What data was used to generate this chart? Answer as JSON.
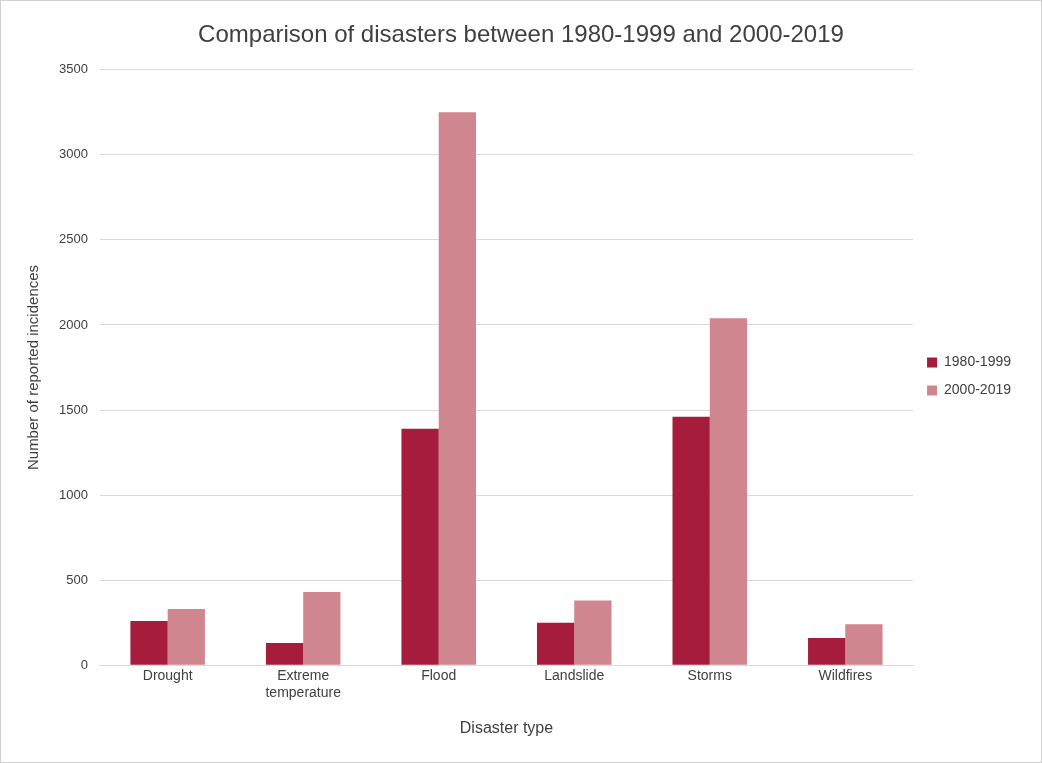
{
  "chart_data": {
    "type": "bar",
    "title": "Comparison of disasters between 1980-1999 and 2000-2019",
    "xlabel": "Disaster type",
    "ylabel": "Number of reported incidences",
    "categories": [
      "Drought",
      "Extreme temperature",
      "Flood",
      "Landslide",
      "Storms",
      "Wildfires"
    ],
    "series": [
      {
        "name": "1980-1999",
        "color": "#a51c3c",
        "values": [
          260,
          130,
          1390,
          250,
          1460,
          160
        ]
      },
      {
        "name": "2000-2019",
        "color": "#d0868e",
        "values": [
          330,
          430,
          3250,
          380,
          2040,
          240
        ]
      }
    ],
    "ylim": [
      0,
      3500
    ],
    "yticks": [
      0,
      500,
      1000,
      1500,
      2000,
      2500,
      3000,
      3500
    ],
    "grid": "y",
    "legend": "right"
  }
}
